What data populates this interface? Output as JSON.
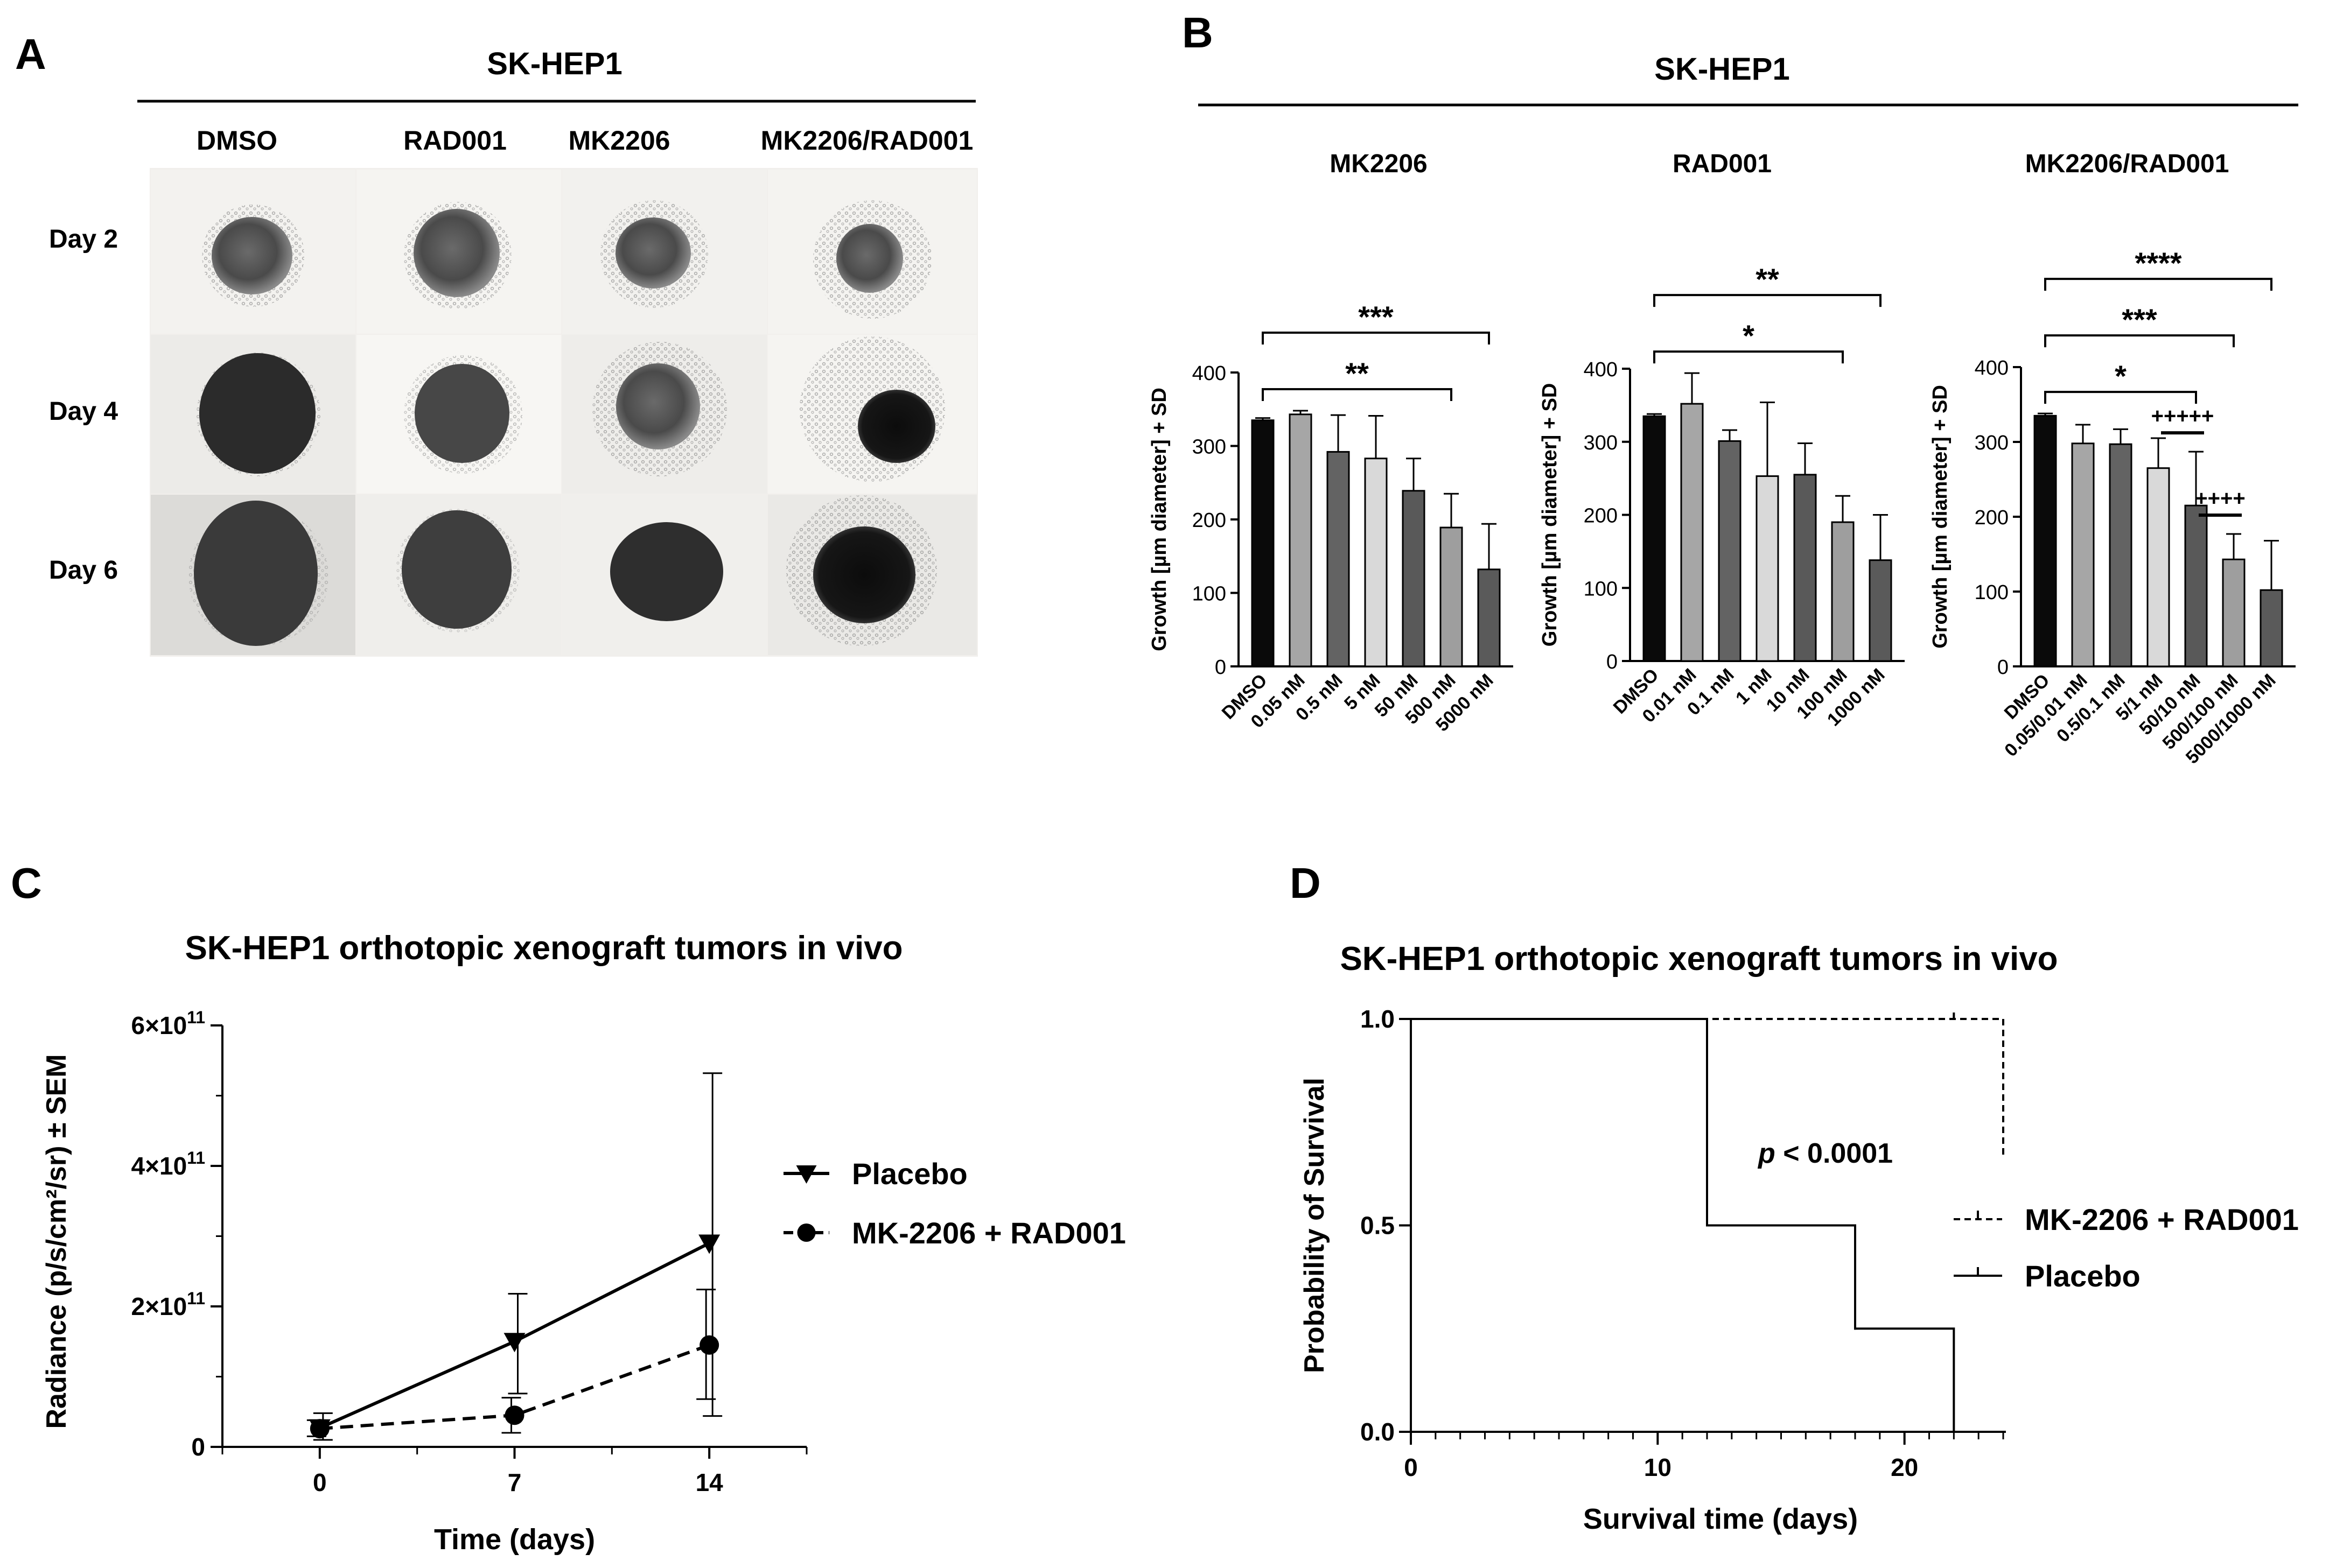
{
  "panels": {
    "A": {
      "letter": "A",
      "header": "SK-HEP1",
      "columns": [
        "DMSO",
        "RAD001",
        "MK2206",
        "MK2206/RAD001"
      ],
      "rows": [
        "Day 2",
        "Day 4",
        "Day 6"
      ]
    },
    "B": {
      "letter": "B",
      "header": "SK-HEP1"
    },
    "C": {
      "letter": "C"
    },
    "D": {
      "letter": "D"
    }
  },
  "chart_data": [
    {
      "id": "B1",
      "type": "bar",
      "title": "MK2206",
      "ylabel": "Growth [µm diameter] + SD",
      "ylim": [
        0,
        400
      ],
      "yticks": [
        0,
        100,
        200,
        300,
        400
      ],
      "categories": [
        "DMSO",
        "0.05 nM",
        "0.5 nM",
        "5 nM",
        "50 nM",
        "500 nM",
        "5000 nM"
      ],
      "values": [
        335,
        343,
        292,
        283,
        239,
        189,
        132
      ],
      "errors": [
        3,
        5,
        50,
        58,
        44,
        46,
        62
      ],
      "colors": [
        "#0a0a0a",
        "#a6a6a6",
        "#636363",
        "#d9d9d9",
        "#595959",
        "#9e9e9e",
        "#5a5a5a"
      ],
      "brackets": [
        {
          "from": 0,
          "to": 5,
          "label": "**"
        },
        {
          "from": 0,
          "to": 6,
          "label": "***"
        }
      ],
      "plus_marks": []
    },
    {
      "id": "B2",
      "type": "bar",
      "title": "RAD001",
      "ylabel": "Growth [µm diameter] + SD",
      "ylim": [
        0,
        400
      ],
      "yticks": [
        0,
        100,
        200,
        300,
        400
      ],
      "categories": [
        "DMSO",
        "0.01 nM",
        "0.1 nM",
        "1 nM",
        "10 nM",
        "100 nM",
        "1000 nM"
      ],
      "values": [
        335,
        352,
        301,
        253,
        255,
        190,
        138
      ],
      "errors": [
        3,
        42,
        15,
        101,
        43,
        36,
        62
      ],
      "colors": [
        "#0a0a0a",
        "#a6a6a6",
        "#636363",
        "#d9d9d9",
        "#595959",
        "#9e9e9e",
        "#5a5a5a"
      ],
      "brackets": [
        {
          "from": 0,
          "to": 5,
          "label": "*"
        },
        {
          "from": 0,
          "to": 6,
          "label": "**"
        }
      ],
      "plus_marks": []
    },
    {
      "id": "B3",
      "type": "bar",
      "title": "MK2206/RAD001",
      "ylabel": "Growth [µm diameter] + SD",
      "ylim": [
        0,
        400
      ],
      "yticks": [
        0,
        100,
        200,
        300,
        400
      ],
      "categories": [
        "DMSO",
        "0.05/0.01 nM",
        "0.5/0.1 nM",
        "5/1 nM",
        "50/10 nM",
        "500/100 nM",
        "5000/1000 nM"
      ],
      "values": [
        335,
        298,
        297,
        265,
        215,
        143,
        102
      ],
      "errors": [
        3,
        25,
        20,
        40,
        72,
        34,
        66
      ],
      "colors": [
        "#0a0a0a",
        "#a6a6a6",
        "#636363",
        "#d9d9d9",
        "#595959",
        "#9e9e9e",
        "#5a5a5a"
      ],
      "brackets": [
        {
          "from": 0,
          "to": 4,
          "label": "*"
        },
        {
          "from": 0,
          "to": 5,
          "label": "***"
        },
        {
          "from": 0,
          "to": 6,
          "label": "****"
        }
      ],
      "plus_marks": [
        {
          "from": 3,
          "to": 4,
          "label": "+++++"
        },
        {
          "from": 4,
          "to": 5,
          "label": "++++"
        }
      ]
    },
    {
      "id": "C",
      "type": "line",
      "title": "SK-HEP1 orthotopic xenograft tumors in vivo",
      "xlabel": "Time (days)",
      "ylabel": "Radiance (p/s/cm²/sr) ± SEM",
      "xticks": [
        0,
        7,
        14
      ],
      "xlim": [
        -3.5,
        17.5
      ],
      "yticks": [
        0,
        200000000000.0,
        400000000000.0,
        600000000000.0
      ],
      "ylim": [
        0,
        600000000000.0
      ],
      "ytick_labels": [
        {
          "mant": "0",
          "exp": ""
        },
        {
          "mant": "2×10",
          "exp": "11"
        },
        {
          "mant": "4×10",
          "exp": "11"
        },
        {
          "mant": "6×10",
          "exp": "11"
        }
      ],
      "series": [
        {
          "name": "Placebo",
          "marker": "triangle-down",
          "dashed": false,
          "x": [
            0,
            7,
            14
          ],
          "y": [
            27000000000.0,
            150000000000.0,
            290000000000.0
          ],
          "err_hi": [
            48000000000.0,
            218000000000.0,
            532000000000.0
          ],
          "err_lo": [
            10000000000.0,
            76000000000.0,
            44000000000.0
          ]
        },
        {
          "name": "MK-2206 + RAD001",
          "marker": "circle",
          "dashed": true,
          "x": [
            0,
            7,
            14
          ],
          "y": [
            26000000000.0,
            45000000000.0,
            145000000000.0
          ],
          "err_hi": [
            38000000000.0,
            70000000000.0,
            224000000000.0
          ],
          "err_lo": [
            15000000000.0,
            20000000000.0,
            68000000000.0
          ]
        }
      ]
    },
    {
      "id": "D",
      "type": "line",
      "title": "SK-HEP1 orthotopic xenograft tumors in vivo",
      "xlabel": "Survival time (days)",
      "ylabel": "Probability of Survival",
      "xticks": [
        0,
        10,
        20
      ],
      "xlim": [
        0,
        24
      ],
      "yticks": [
        0.0,
        0.5,
        1.0
      ],
      "ylim": [
        0,
        1.0
      ],
      "ytick_labels": [
        "0.0",
        "0.5",
        "1.0"
      ],
      "annotation": {
        "italic": "p",
        "text": " < 0.0001"
      },
      "series": [
        {
          "name": "MK-2206 + RAD001",
          "dashed": true,
          "steps": [
            [
              0,
              1.0
            ],
            [
              24,
              1.0
            ],
            [
              24,
              0.67
            ]
          ],
          "censored": [
            [
              22,
              1.0
            ]
          ]
        },
        {
          "name": "Placebo",
          "dashed": false,
          "steps": [
            [
              0,
              1.0
            ],
            [
              12,
              1.0
            ],
            [
              12,
              0.5
            ],
            [
              18,
              0.5
            ],
            [
              18,
              0.25
            ],
            [
              22,
              0.25
            ],
            [
              22,
              0.0
            ]
          ],
          "censored": [
            [
              12,
              0.5
            ],
            [
              18,
              0.25
            ]
          ]
        }
      ]
    }
  ]
}
